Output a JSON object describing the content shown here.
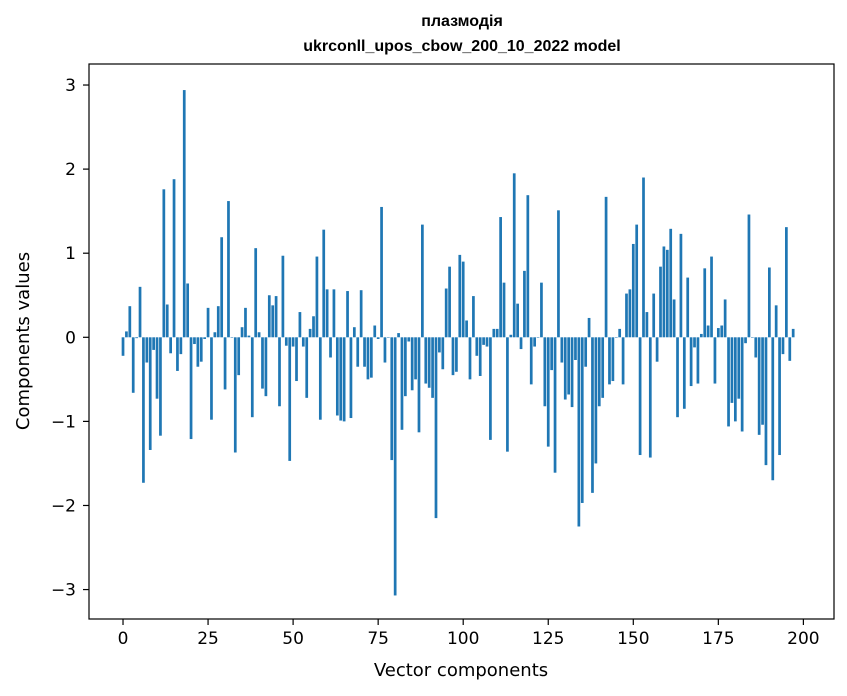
{
  "chart_data": {
    "type": "bar",
    "title": "плазмодія",
    "subtitle": "ukrconll_upos_cbow_200_10_2022 model",
    "xlabel": "Vector components",
    "ylabel": "Components values",
    "xlim": [
      -10,
      209
    ],
    "ylim": [
      -3.35,
      3.25
    ],
    "x_ticks": [
      0,
      25,
      50,
      75,
      100,
      125,
      150,
      175,
      200
    ],
    "x_tick_labels": [
      "0",
      "25",
      "50",
      "75",
      "100",
      "125",
      "150",
      "175",
      "200"
    ],
    "y_ticks": [
      -3,
      -2,
      -1,
      0,
      1,
      2,
      3
    ],
    "y_tick_labels": [
      "−3",
      "−2",
      "−1",
      "0",
      "1",
      "2",
      "3"
    ],
    "bar_color": "#1f77b4",
    "values": [
      -0.22,
      0.07,
      0.37,
      -0.66,
      -0.01,
      0.6,
      -1.73,
      -0.3,
      -1.34,
      -0.15,
      -0.73,
      -1.17,
      1.76,
      0.39,
      -0.19,
      1.88,
      -0.4,
      -0.2,
      2.94,
      0.64,
      -1.21,
      -0.08,
      -0.35,
      -0.29,
      -0.02,
      0.35,
      -0.98,
      0.06,
      0.37,
      1.19,
      -0.62,
      1.62,
      0.0,
      -1.37,
      -0.45,
      0.12,
      0.35,
      0.02,
      -0.95,
      1.06,
      0.06,
      -0.61,
      -0.7,
      0.5,
      0.38,
      0.49,
      -0.82,
      0.97,
      -0.1,
      -1.47,
      -0.11,
      -0.52,
      0.3,
      -0.11,
      -0.72,
      0.1,
      0.25,
      0.96,
      -0.98,
      1.28,
      0.57,
      -0.24,
      0.57,
      -0.93,
      -0.99,
      -1.0,
      0.55,
      -0.96,
      0.12,
      -0.35,
      0.56,
      -0.35,
      -0.5,
      -0.48,
      0.14,
      -0.02,
      1.55,
      -0.3,
      0.0,
      -1.46,
      -3.07,
      0.05,
      -1.1,
      -0.7,
      -0.05,
      -0.63,
      -0.5,
      -1.13,
      1.34,
      -0.55,
      -0.6,
      -0.72,
      -2.15,
      -0.18,
      -0.38,
      0.58,
      0.84,
      -0.45,
      -0.41,
      0.98,
      0.9,
      0.2,
      -0.5,
      0.49,
      -0.22,
      -0.46,
      -0.09,
      -0.11,
      -1.22,
      0.1,
      0.1,
      1.43,
      0.65,
      -1.36,
      0.03,
      1.95,
      0.4,
      -0.14,
      0.79,
      1.69,
      -0.56,
      -0.11,
      0.0,
      0.65,
      -0.82,
      -1.3,
      -0.39,
      -1.61,
      1.51,
      -0.3,
      -0.74,
      -0.68,
      -0.83,
      -0.27,
      -2.25,
      -1.97,
      -0.35,
      0.23,
      -1.85,
      -1.5,
      -0.82,
      -0.72,
      1.67,
      -0.56,
      -0.52,
      0.0,
      0.1,
      -0.56,
      0.52,
      0.57,
      1.11,
      1.34,
      -1.4,
      1.9,
      0.3,
      -1.43,
      0.52,
      -0.29,
      0.84,
      1.08,
      1.04,
      1.29,
      0.45,
      -0.95,
      1.23,
      -0.85,
      0.71,
      -0.58,
      -0.12,
      -0.55,
      0.04,
      0.82,
      0.14,
      0.96,
      -0.55,
      0.11,
      0.14,
      0.45,
      -1.06,
      -0.78,
      -1.0,
      -0.73,
      -1.12,
      -0.07,
      1.46,
      0.0,
      -0.24,
      -1.16,
      -1.04,
      -1.52,
      0.83,
      -1.7,
      0.38,
      -1.4,
      -0.2,
      1.31,
      -0.28,
      0.1
    ]
  }
}
